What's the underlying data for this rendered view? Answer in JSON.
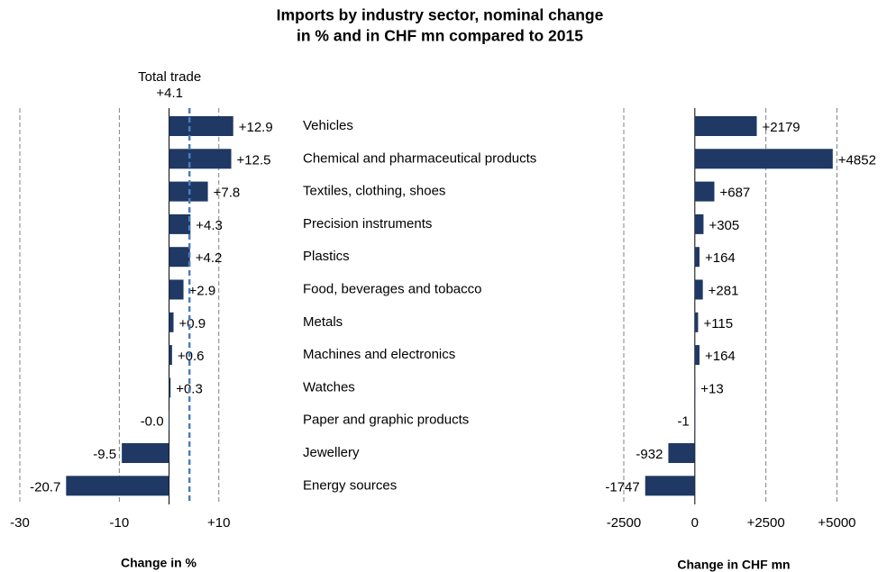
{
  "chart_data": [
    {
      "type": "bar",
      "orientation": "horizontal",
      "title": [
        "Imports by industry sector, nominal change",
        "in % and in CHF mn compared to 2015"
      ],
      "xlabel": "Change in %",
      "categories": [
        "Vehicles",
        "Chemical and pharmaceutical products",
        "Textiles, clothing, shoes",
        "Precision instruments",
        "Plastics",
        "Food, beverages and tobacco",
        "Metals",
        "Machines and electronics",
        "Watches",
        "Paper and graphic products",
        "Jewellery",
        "Energy sources"
      ],
      "values": [
        12.9,
        12.5,
        7.8,
        4.3,
        4.2,
        2.9,
        0.9,
        0.6,
        0.3,
        -0.0,
        -9.5,
        -20.7
      ],
      "value_labels": [
        "+12.9",
        "+12.5",
        "+7.8",
        "+4.3",
        "+4.2",
        "+2.9",
        "+0.9",
        "+0.6",
        "+0.3",
        "-0.0",
        "-9.5",
        "-20.7"
      ],
      "color": "#1f3864",
      "xlim": [
        -30,
        24
      ],
      "xticks": [
        -30,
        -10,
        {
          "value": 10,
          "label": "+10"
        }
      ],
      "grid": true,
      "annotations": [
        {
          "text": "Total trade",
          "value_label": "+4.1",
          "value": 4.1,
          "color": "#4a7ebb"
        }
      ]
    },
    {
      "type": "bar",
      "orientation": "horizontal",
      "xlabel": "Change in CHF mn",
      "values": [
        2179,
        4852,
        687,
        305,
        164,
        281,
        115,
        164,
        13,
        -1,
        -932,
        -1747
      ],
      "value_labels": [
        "+2179",
        "+4852",
        "+687",
        "+305",
        "+164",
        "+281",
        "+115",
        "+164",
        "+13",
        "-1",
        "-932",
        "-1747"
      ],
      "color": "#1f3864",
      "xlim": [
        -2500,
        6000
      ],
      "xticks": [
        -2500,
        0,
        {
          "value": 2500,
          "label": "+2500"
        },
        {
          "value": 5000,
          "label": "+5000"
        }
      ],
      "grid": true
    }
  ]
}
